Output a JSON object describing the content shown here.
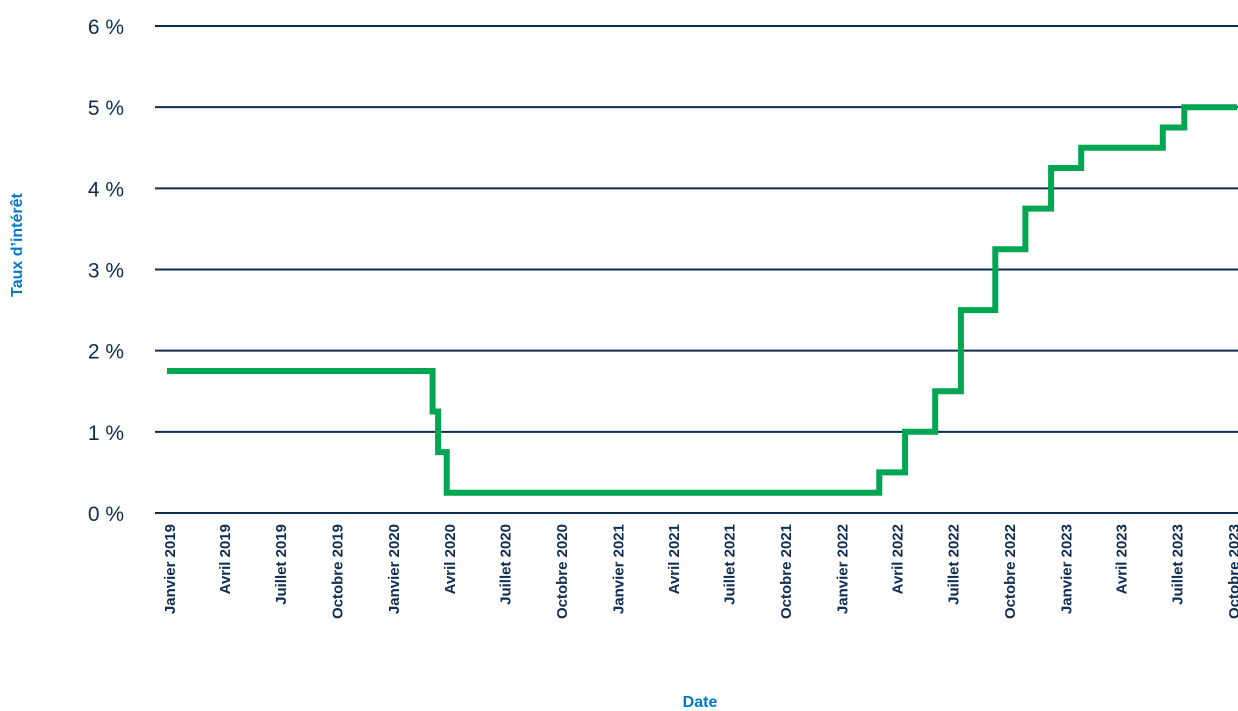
{
  "chart_data": {
    "type": "line",
    "step": true,
    "title": "",
    "xlabel": "Date",
    "ylabel": "Taux d’intérêt",
    "ylim": [
      0,
      6
    ],
    "yticks": [
      {
        "value": 0,
        "label": "0 %"
      },
      {
        "value": 1,
        "label": "1 %"
      },
      {
        "value": 2,
        "label": "2 %"
      },
      {
        "value": 3,
        "label": "3 %"
      },
      {
        "value": 4,
        "label": "4 %"
      },
      {
        "value": 5,
        "label": "5 %"
      },
      {
        "value": 6,
        "label": "6 %"
      }
    ],
    "xlim": [
      "2019-01-01",
      "2023-10-01"
    ],
    "xticks": [
      {
        "date": "2019-01-01",
        "label": "Janvier 2019"
      },
      {
        "date": "2019-04-01",
        "label": "Avril 2019"
      },
      {
        "date": "2019-07-01",
        "label": "Juillet 2019"
      },
      {
        "date": "2019-10-01",
        "label": "Octobre 2019"
      },
      {
        "date": "2020-01-01",
        "label": "Janvier 2020"
      },
      {
        "date": "2020-04-01",
        "label": "Avril 2020"
      },
      {
        "date": "2020-07-01",
        "label": "Juillet 2020"
      },
      {
        "date": "2020-10-01",
        "label": "Octobre 2020"
      },
      {
        "date": "2021-01-01",
        "label": "Janvier 2021"
      },
      {
        "date": "2021-04-01",
        "label": "Avril 2021"
      },
      {
        "date": "2021-07-01",
        "label": "Juillet 2021"
      },
      {
        "date": "2021-10-01",
        "label": "Octobre 2021"
      },
      {
        "date": "2022-01-01",
        "label": "Janvier 2022"
      },
      {
        "date": "2022-04-01",
        "label": "Avril 2022"
      },
      {
        "date": "2022-07-01",
        "label": "Juillet 2022"
      },
      {
        "date": "2022-10-01",
        "label": "Octobre 2022"
      },
      {
        "date": "2023-01-01",
        "label": "Janvier 2023"
      },
      {
        "date": "2023-04-01",
        "label": "Avril 2023"
      },
      {
        "date": "2023-07-01",
        "label": "Juillet 2023"
      },
      {
        "date": "2023-10-01",
        "label": "Octobre 2023"
      }
    ],
    "grid": true,
    "colors": {
      "line": "#00a651",
      "grid": "#0d2d52",
      "tick_text": "#0d2d52",
      "axis_title": "#0077c8"
    },
    "series": [
      {
        "points": [
          {
            "date": "2019-01-01",
            "value": 1.75
          },
          {
            "date": "2020-03-04",
            "value": 1.25
          },
          {
            "date": "2020-03-13",
            "value": 0.75
          },
          {
            "date": "2020-03-27",
            "value": 0.25
          },
          {
            "date": "2022-03-02",
            "value": 0.5
          },
          {
            "date": "2022-04-13",
            "value": 1.0
          },
          {
            "date": "2022-06-01",
            "value": 1.5
          },
          {
            "date": "2022-07-13",
            "value": 2.5
          },
          {
            "date": "2022-09-07",
            "value": 3.25
          },
          {
            "date": "2022-10-26",
            "value": 3.75
          },
          {
            "date": "2022-12-07",
            "value": 4.25
          },
          {
            "date": "2023-01-25",
            "value": 4.5
          },
          {
            "date": "2023-06-07",
            "value": 4.75
          },
          {
            "date": "2023-07-12",
            "value": 5.0
          },
          {
            "date": "2023-10-01",
            "value": 5.0
          }
        ]
      }
    ]
  }
}
